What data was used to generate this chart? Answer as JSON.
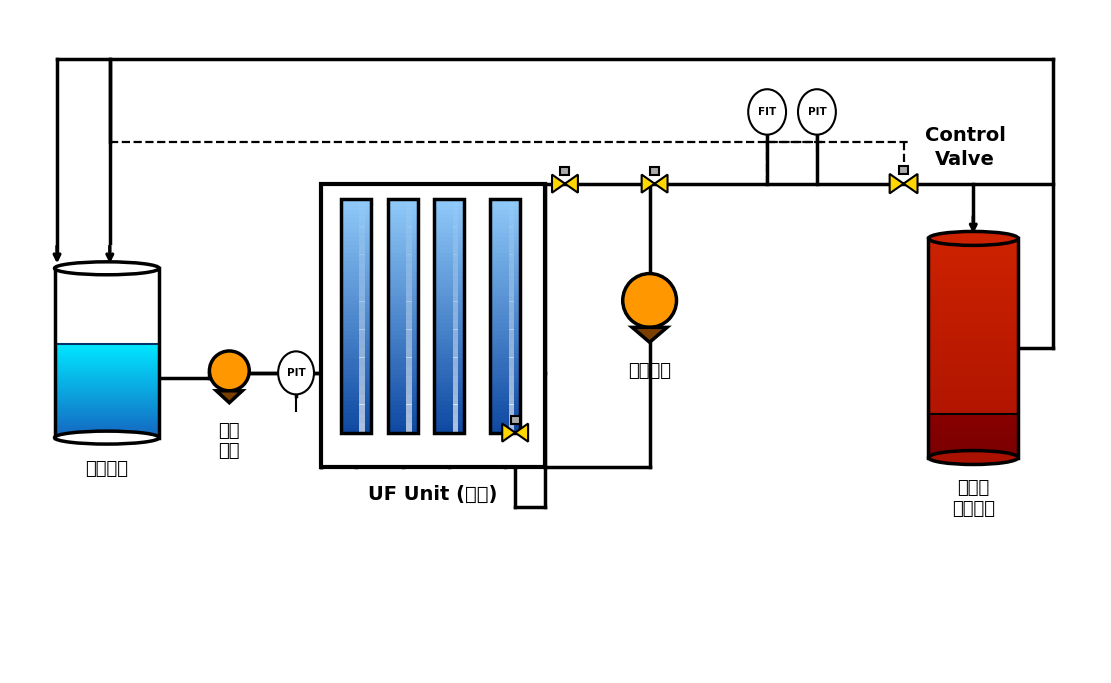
{
  "bg_color": "#ffffff",
  "supply_tank_label": "공급수조",
  "supply_pump_label": "공급\n펜프",
  "uf_unit_label": "UF Unit (더미)",
  "backwash_pump_label": "역세펜프",
  "control_valve_label": "Control\nValve",
  "ac_filter_label": "활성탄\n여과장치",
  "fit_label": "FIT",
  "pit_label": "PIT",
  "pit2_label": "PIT",
  "tank_water_color_top": "#00e5ff",
  "tank_water_color_bottom": "#1565c0",
  "uf_color_top": "#90caf9",
  "uf_color_bottom": "#0d47a1",
  "pump_body_color": "#ff9800",
  "pump_base_color": "#7b3f00",
  "ac_body_color": "#cc2200",
  "ac_liquid_color": "#7a0000",
  "valve_color": "#ffd700",
  "pipe_color": "#000000",
  "pipe_lw": 2.5,
  "dash_lw": 1.6
}
